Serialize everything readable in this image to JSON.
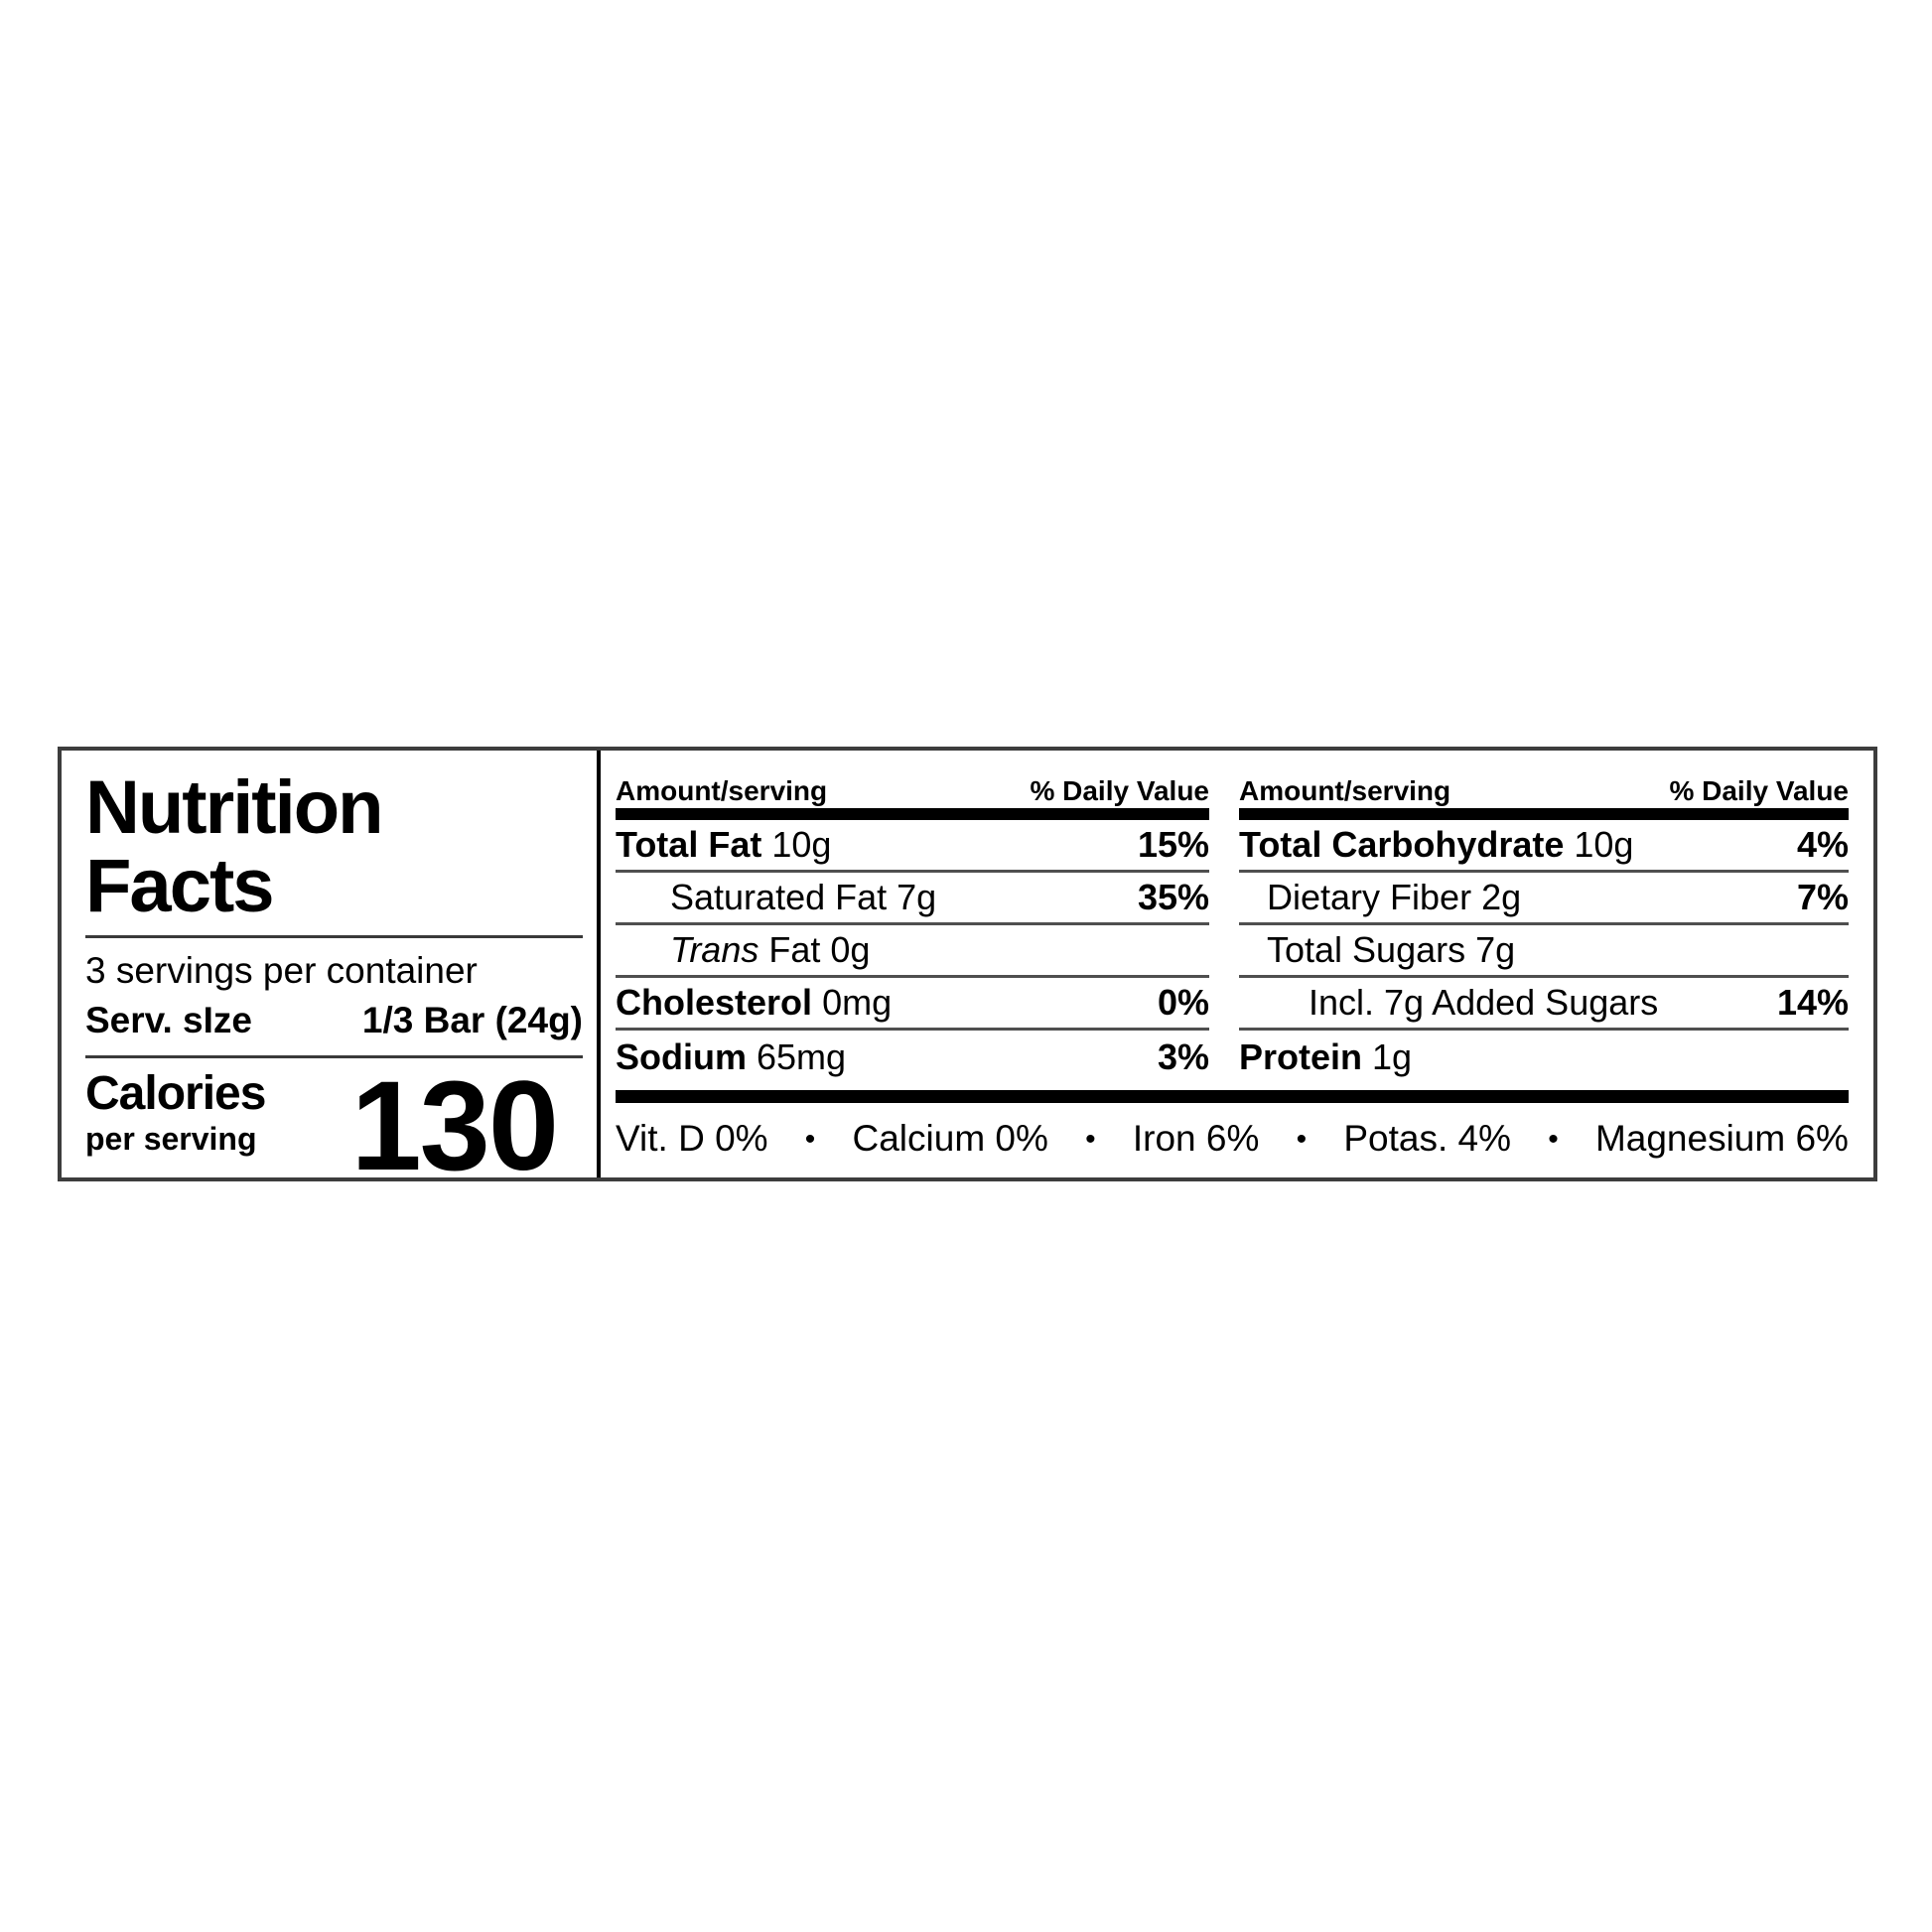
{
  "label": {
    "title": "Nutrition\nFacts",
    "servings_per_container": "3 servings per container",
    "serving_size_label": "Serv. sIze",
    "serving_size_value": "1/3 Bar (24g)",
    "calories_label": "Calories",
    "calories_sublabel": "per serving",
    "calories_value": "130"
  },
  "columns": {
    "header_amount": "Amount/serving",
    "header_dv": "% Daily Value",
    "mid": {
      "rows": [
        {
          "bold": "Total Fat",
          "amount": "10g",
          "dv": "15%"
        },
        {
          "name": "Saturated Fat",
          "amount": "7g",
          "dv": "35%"
        },
        {
          "italic": "Trans",
          "name": "Fat",
          "amount": "0g",
          "dv": ""
        },
        {
          "bold": "Cholesterol",
          "amount": "0mg",
          "dv": "0%"
        },
        {
          "bold": "Sodium",
          "amount": "65mg",
          "dv": "3%"
        }
      ]
    },
    "right": {
      "rows": [
        {
          "bold": "Total Carbohydrate",
          "amount": "10g",
          "dv": "4%"
        },
        {
          "name": "Dietary Fiber",
          "amount": "2g",
          "dv": "7%"
        },
        {
          "name": "Total Sugars",
          "amount": "7g",
          "dv": ""
        },
        {
          "name": "Incl. 7g Added Sugars",
          "amount": "",
          "dv": "14%"
        },
        {
          "bold": "Protein",
          "amount": "1g",
          "dv": ""
        }
      ]
    }
  },
  "micronutrients": {
    "separator": "•",
    "items": [
      "Vit. D 0%",
      "Calcium 0%",
      "Iron 6%",
      "Potas. 4%",
      "Magnesium 6%"
    ]
  },
  "colors": {
    "background": "#ffffff",
    "text": "#000000",
    "outer_border": "#3d3d3d",
    "thin_rule": "#4f4f4f",
    "thick_bar": "#000000"
  }
}
